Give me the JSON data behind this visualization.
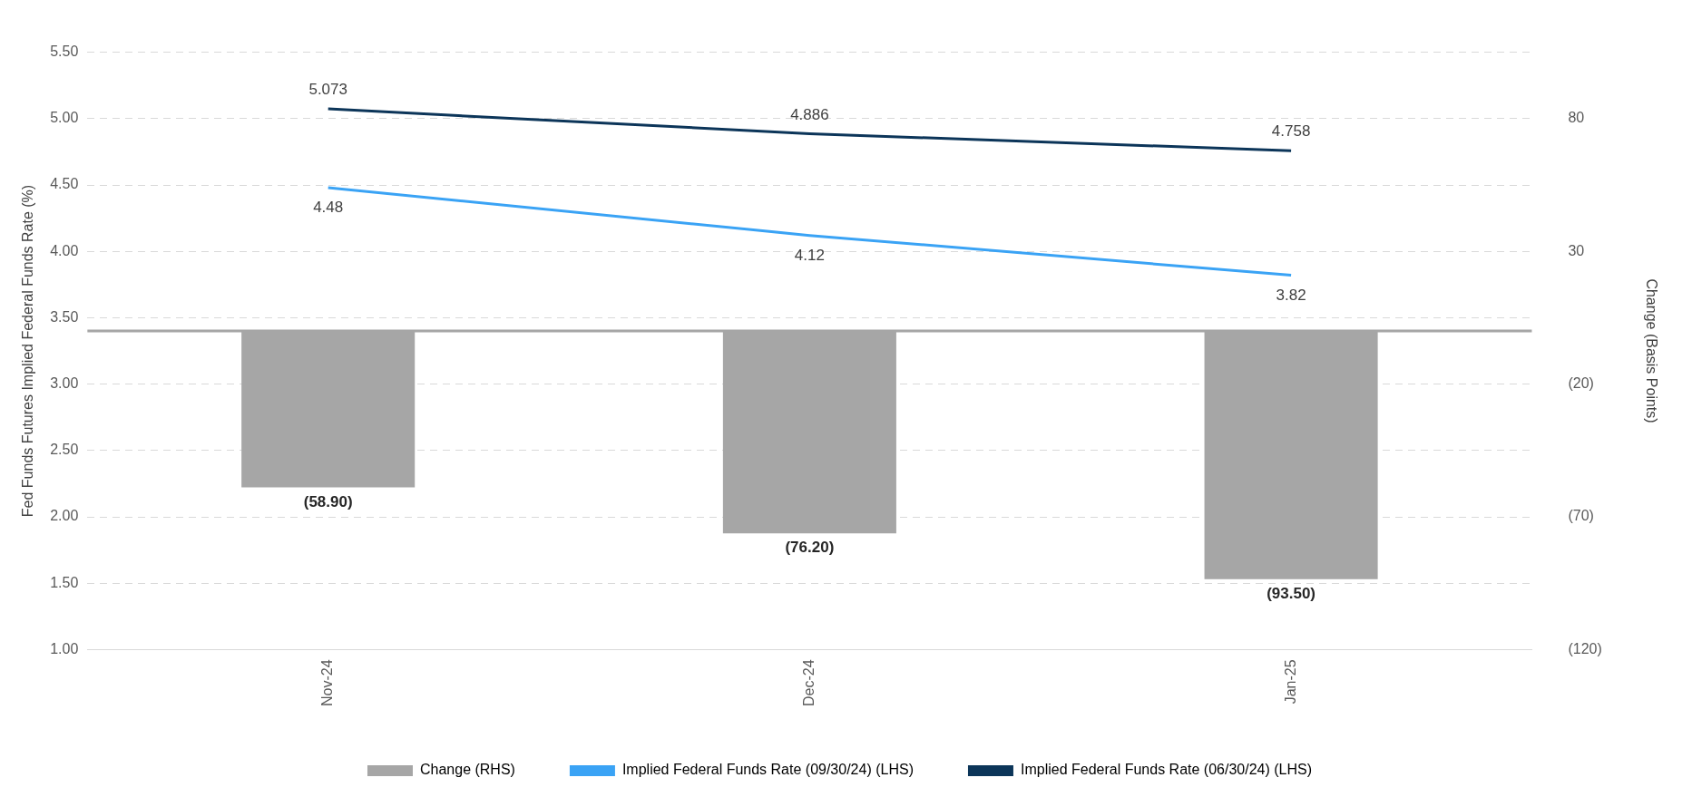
{
  "chart_data": {
    "type": "bar",
    "categories": [
      "Nov-24",
      "Dec-24",
      "Jan-25"
    ],
    "ylabel": "Fed Funds Futures Implied Federal Funds Rate (%)",
    "y2label": "Change (Basis Points)",
    "series": [
      {
        "name": "Change (RHS)",
        "axis": "y2",
        "color": "#a6a6a6",
        "values": [
          -58.9,
          -76.2,
          -93.5
        ],
        "value_labels": [
          "(58.90)",
          "(76.20)",
          "(93.50)"
        ]
      },
      {
        "name": "Implied Federal Funds Rate (09/30/24) (LHS)",
        "type": "line",
        "color": "#3aa3f5",
        "values": [
          4.48,
          4.12,
          3.82
        ],
        "value_labels": [
          "4.48",
          "4.12",
          "3.82"
        ]
      },
      {
        "name": "Implied Federal Funds Rate (06/30/24) (LHS)",
        "type": "line",
        "color": "#0c3559",
        "values": [
          5.073,
          4.886,
          4.758
        ],
        "value_labels": [
          "5.073",
          "4.886",
          "4.758"
        ]
      }
    ],
    "ylim": [
      1,
      5.5
    ],
    "yticks": [
      {
        "value": 1,
        "label": "1.00"
      },
      {
        "value": 1.5,
        "label": "1.50"
      },
      {
        "value": 2,
        "label": "2.00"
      },
      {
        "value": 2.5,
        "label": "2.50"
      },
      {
        "value": 3,
        "label": "3.00"
      },
      {
        "value": 3.5,
        "label": "3.50"
      },
      {
        "value": 4,
        "label": "4.00"
      },
      {
        "value": 4.5,
        "label": "4.50"
      },
      {
        "value": 5,
        "label": "5.00"
      },
      {
        "value": 5.5,
        "label": "5.50"
      }
    ],
    "y2lim": [
      -120,
      105
    ],
    "y2ticks": [
      {
        "value": -120,
        "label": "(120)"
      },
      {
        "value": -70,
        "label": "(70)"
      },
      {
        "value": -20,
        "label": "(20)"
      },
      30,
      80
    ],
    "ref_lines": [
      {
        "axis": "y2",
        "value": 0,
        "color": "#a6a6a6"
      }
    ],
    "grid": "y",
    "legend": "bottom",
    "marker": "none",
    "line_style": "solid"
  }
}
